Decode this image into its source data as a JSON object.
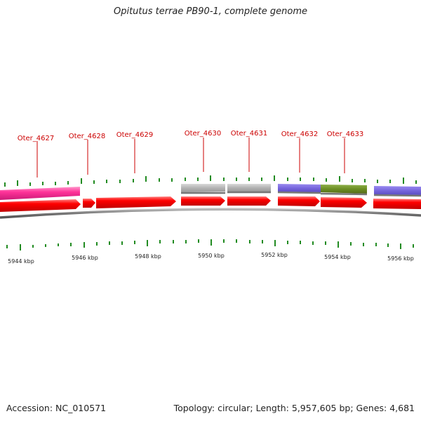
{
  "title": "Opitutus terrae PB90-1, complete genome",
  "footer": {
    "accession": "Accession: NC_010571",
    "summary": "Topology: circular; Length: 5,957,605 bp; Genes: 4,681"
  },
  "colors": {
    "gene_forward": "#ff0000",
    "pink": "#ff3399",
    "gray": "#b3b3b3",
    "purple": "#7766dd",
    "olive": "#6b8e23",
    "label": "#cc0000",
    "tick": "#228b22",
    "backbone": "#808080"
  },
  "gene_labels": [
    "Oter_4627",
    "Oter_4628",
    "Oter_4629",
    "Oter_4630",
    "Oter_4631",
    "Oter_4632",
    "Oter_4633"
  ],
  "scale_labels": [
    "5944 kbp",
    "5946 kbp",
    "5948 kbp",
    "5950 kbp",
    "5952 kbp",
    "5954 kbp",
    "5956 kbp"
  ]
}
